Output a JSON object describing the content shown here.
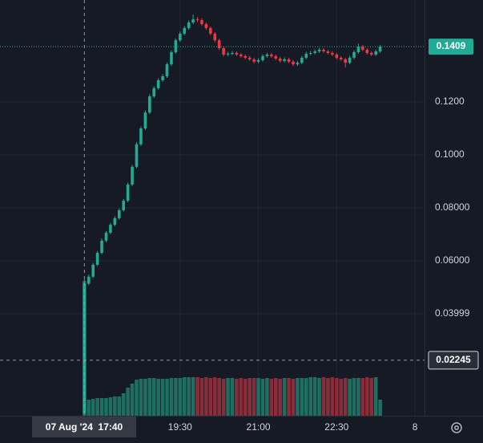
{
  "chart_data": {
    "type": "candlestick",
    "up_color": "#22ab94",
    "down_color": "#f23645",
    "volume_up_color": "#1e6e62",
    "volume_down_color": "#8a2d3a",
    "grid": true,
    "xlim": [
      963,
      1451
    ],
    "ylim": [
      0.0015,
      0.1585
    ],
    "xticks": [
      {
        "value": 1170,
        "label": "19:30"
      },
      {
        "value": 1260,
        "label": "21:00"
      },
      {
        "value": 1350,
        "label": "22:30"
      },
      {
        "value": 1440,
        "label": "8"
      }
    ],
    "yticks": [
      {
        "value": 0.12,
        "label": "0.1200"
      },
      {
        "value": 0.1,
        "label": "0.1000"
      },
      {
        "value": 0.08,
        "label": "0.08000"
      },
      {
        "value": 0.06,
        "label": "0.06000"
      },
      0.03999
    ],
    "crosshair": {
      "x": 1060,
      "x_label": "07 Aug '24  17:40",
      "price": 0.02245
    },
    "x": [
      1060,
      1065,
      1070,
      1075,
      1080,
      1085,
      1090,
      1095,
      1100,
      1105,
      1110,
      1115,
      1120,
      1125,
      1130,
      1135,
      1140,
      1145,
      1150,
      1155,
      1160,
      1165,
      1170,
      1175,
      1180,
      1185,
      1190,
      1195,
      1200,
      1205,
      1210,
      1215,
      1220,
      1225,
      1230,
      1235,
      1240,
      1245,
      1250,
      1255,
      1260,
      1265,
      1270,
      1275,
      1280,
      1285,
      1290,
      1295,
      1300,
      1305,
      1310,
      1315,
      1320,
      1325,
      1330,
      1335,
      1340,
      1345,
      1350,
      1355,
      1360,
      1365,
      1370,
      1375,
      1380,
      1385,
      1390,
      1395,
      1400
    ],
    "open": [
      0.0025,
      0.0514,
      0.054,
      0.0585,
      0.063,
      0.0676,
      0.0706,
      0.0736,
      0.0761,
      0.0791,
      0.0827,
      0.0888,
      0.0955,
      0.104,
      0.11,
      0.116,
      0.1221,
      0.1252,
      0.1282,
      0.1297,
      0.1342,
      0.1388,
      0.1433,
      0.1458,
      0.1479,
      0.15,
      0.1512,
      0.1509,
      0.1494,
      0.1479,
      0.1458,
      0.1433,
      0.1403,
      0.1379,
      0.1382,
      0.1385,
      0.1379,
      0.1373,
      0.1367,
      0.1361,
      0.1352,
      0.1358,
      0.1373,
      0.1379,
      0.1373,
      0.1364,
      0.1355,
      0.1361,
      0.1352,
      0.1342,
      0.1348,
      0.1367,
      0.1382,
      0.1385,
      0.1391,
      0.1397,
      0.1391,
      0.1385,
      0.1379,
      0.1367,
      0.1361,
      0.1348,
      0.1367,
      0.1388,
      0.1409,
      0.1397,
      0.1385,
      0.1379,
      0.1391
    ],
    "high": [
      0.053,
      0.0548,
      0.0592,
      0.0637,
      0.0684,
      0.0713,
      0.0743,
      0.0768,
      0.0798,
      0.0834,
      0.0895,
      0.0962,
      0.1048,
      0.1107,
      0.1168,
      0.1229,
      0.1259,
      0.129,
      0.1305,
      0.1349,
      0.1395,
      0.144,
      0.1466,
      0.1486,
      0.1508,
      0.153,
      0.152,
      0.1516,
      0.15,
      0.1485,
      0.1464,
      0.1439,
      0.1409,
      0.1389,
      0.1392,
      0.1391,
      0.1385,
      0.1379,
      0.1373,
      0.1367,
      0.1365,
      0.138,
      0.1386,
      0.1385,
      0.1379,
      0.137,
      0.1368,
      0.1367,
      0.1358,
      0.1355,
      0.1374,
      0.1389,
      0.1392,
      0.1398,
      0.1404,
      0.1403,
      0.1397,
      0.1391,
      0.1385,
      0.1373,
      0.1367,
      0.1374,
      0.1395,
      0.142,
      0.1415,
      0.1403,
      0.1391,
      0.1398,
      0.1416
    ],
    "low": [
      0.002,
      0.0508,
      0.0535,
      0.058,
      0.0625,
      0.067,
      0.07,
      0.073,
      0.0755,
      0.0786,
      0.0821,
      0.0882,
      0.095,
      0.1034,
      0.1094,
      0.1154,
      0.1215,
      0.1246,
      0.1276,
      0.1291,
      0.1336,
      0.1382,
      0.1427,
      0.1452,
      0.1473,
      0.1494,
      0.1502,
      0.1488,
      0.1472,
      0.1451,
      0.1426,
      0.1396,
      0.1372,
      0.1373,
      0.1376,
      0.1373,
      0.1367,
      0.1361,
      0.1355,
      0.1345,
      0.1346,
      0.1352,
      0.1367,
      0.1367,
      0.1358,
      0.1349,
      0.1349,
      0.1346,
      0.1336,
      0.1336,
      0.1342,
      0.1361,
      0.1376,
      0.1379,
      0.1385,
      0.1385,
      0.1379,
      0.1373,
      0.1361,
      0.1355,
      0.133,
      0.1342,
      0.1361,
      0.1382,
      0.1391,
      0.1379,
      0.1373,
      0.1373,
      0.1385
    ],
    "close": [
      0.0514,
      0.054,
      0.0585,
      0.063,
      0.0676,
      0.0706,
      0.0736,
      0.0761,
      0.0791,
      0.0827,
      0.0888,
      0.0955,
      0.104,
      0.11,
      0.116,
      0.1221,
      0.1252,
      0.1282,
      0.1297,
      0.1342,
      0.1388,
      0.1433,
      0.1458,
      0.1479,
      0.15,
      0.1512,
      0.1509,
      0.1494,
      0.1479,
      0.1458,
      0.1433,
      0.1403,
      0.1379,
      0.1382,
      0.1385,
      0.1379,
      0.1373,
      0.1367,
      0.1361,
      0.1352,
      0.1358,
      0.1373,
      0.1379,
      0.1373,
      0.1364,
      0.1355,
      0.1361,
      0.1352,
      0.1342,
      0.1348,
      0.1367,
      0.1382,
      0.1385,
      0.1391,
      0.1397,
      0.1391,
      0.1385,
      0.1379,
      0.1367,
      0.1361,
      0.1348,
      0.1367,
      0.1388,
      0.1409,
      0.1397,
      0.1385,
      0.1379,
      0.1391,
      0.1409
    ],
    "volume": [
      168,
      20,
      21,
      22,
      22,
      22,
      23,
      24,
      24,
      28,
      35,
      40,
      45,
      46,
      46,
      47,
      47,
      46,
      46,
      46,
      47,
      47,
      47,
      48,
      48,
      48,
      48,
      47,
      48,
      47,
      48,
      47,
      46,
      47,
      47,
      46,
      47,
      46,
      47,
      47,
      47,
      46,
      47,
      46,
      47,
      46,
      47,
      47,
      46,
      47,
      47,
      47,
      48,
      48,
      47,
      48,
      47,
      48,
      47,
      46,
      47,
      46,
      47,
      47,
      47,
      48,
      47,
      48,
      20
    ]
  }
}
